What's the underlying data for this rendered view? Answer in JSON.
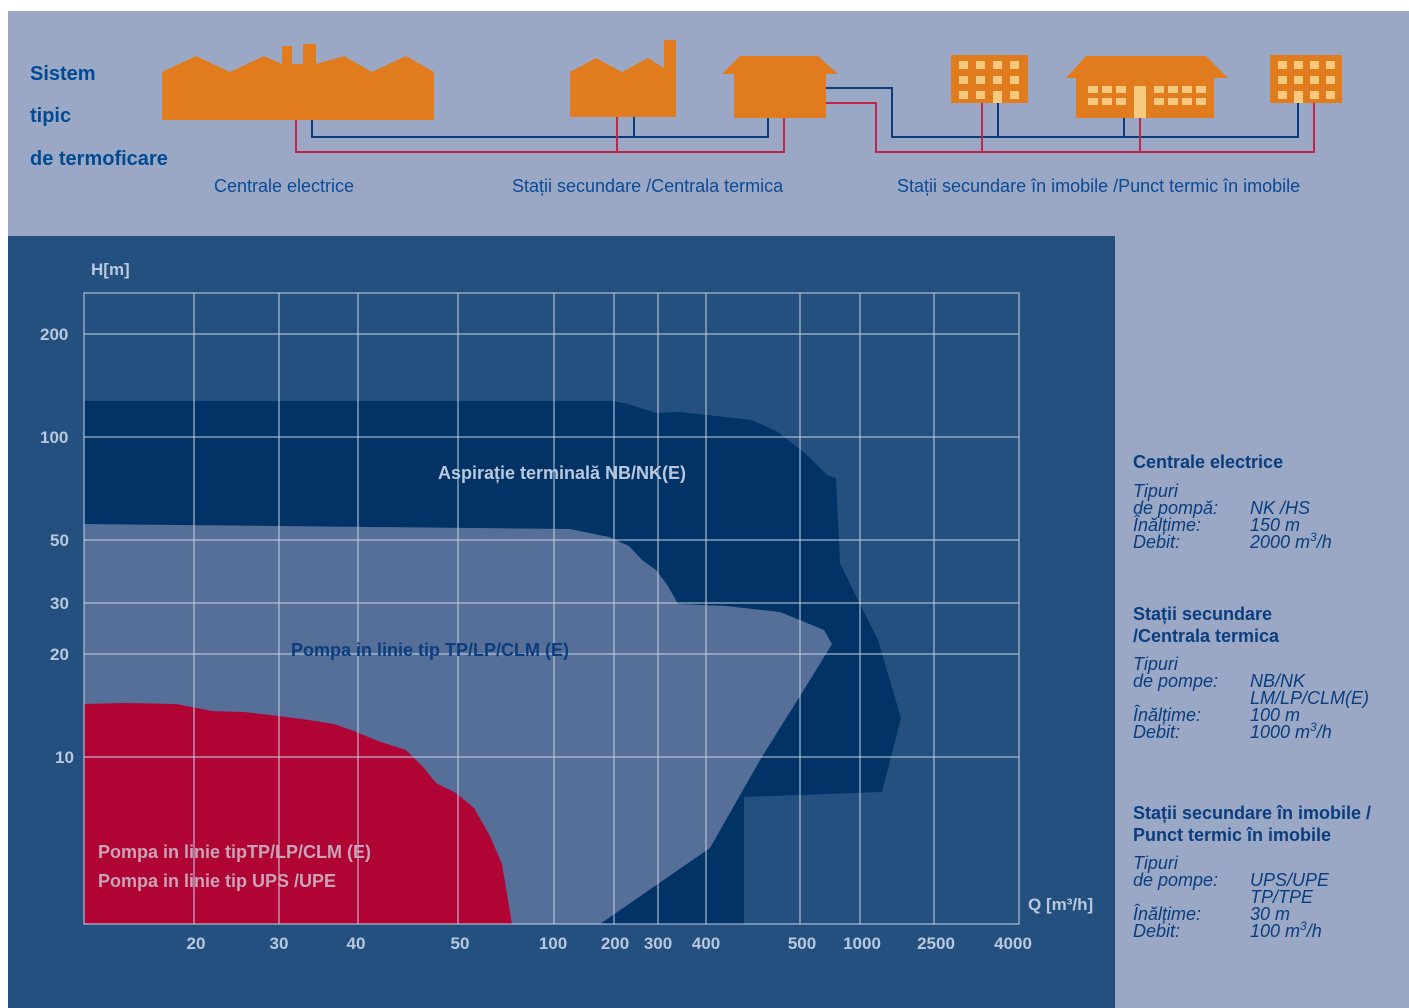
{
  "system_title": [
    "Sistem",
    "tipic",
    "de termoficare"
  ],
  "stages": [
    "Centrale electrice",
    "Stații secundare /Centrala termica",
    "Stații secundare în imobile /Punct termic în imobile"
  ],
  "colors": {
    "top_band": "#9aa8c6",
    "chart_bg": "#23507f",
    "building": "#e07c1e",
    "supply_pipe": "#c0254a",
    "return_pipe": "#0b3d7e",
    "nb_nk_region": "#023366",
    "tp_lp_region": "#556f99",
    "ups_upe_region": "#b00435"
  },
  "chart_data": {
    "type": "area",
    "ylabel": "H[m]",
    "xlabel": "Q [m³/h]",
    "y_ticks": [
      "200",
      "100",
      "50",
      "30",
      "20",
      "10"
    ],
    "x_ticks": [
      "20",
      "30",
      "40",
      "50",
      "100",
      "200",
      "300",
      "400",
      "500",
      "1000",
      "2500",
      "4000"
    ],
    "grid": true,
    "regions": [
      {
        "name": "Aspirație terminală NB/NK(E)"
      },
      {
        "name": "Pompa in linie tip TP/LP/CLM (E)"
      },
      {
        "name": "Pompa in linie tipTP/LP/CLM (E)",
        "name2": "Pompa in linie tip UPS /UPE"
      }
    ]
  },
  "info": [
    {
      "title": "Centrale electrice",
      "tipuri": "Tipuri",
      "pumps_key": "de pompă:",
      "pumps": [
        "NK /HS"
      ],
      "height_key": "Înălțime:",
      "height": "150 m",
      "flow_key": "Debit:",
      "flow": "2000 m",
      "flow_unit_sup": "3",
      "flow_unit_tail": "/h"
    },
    {
      "title": "Stații secundare",
      "title2": "/Centrala termica",
      "tipuri": "Tipuri",
      "pumps_key": "de pompe:",
      "pumps": [
        "NB/NK",
        "LM/LP/CLM(E)"
      ],
      "height_key": "Înălțime:",
      "height": "100 m",
      "flow_key": "Debit:",
      "flow": "1000 m",
      "flow_unit_sup": "3",
      "flow_unit_tail": "/h"
    },
    {
      "title": "Stații secundare în imobile /",
      "title2": "Punct termic în imobile",
      "tipuri": "Tipuri",
      "pumps_key": "de pompe:",
      "pumps": [
        "UPS/UPE",
        "TP/TPE"
      ],
      "height_key": "Înălțime:",
      "height": "30 m",
      "flow_key": "Debit:",
      "flow": "100 m",
      "flow_unit_sup": "3",
      "flow_unit_tail": "/h"
    }
  ]
}
